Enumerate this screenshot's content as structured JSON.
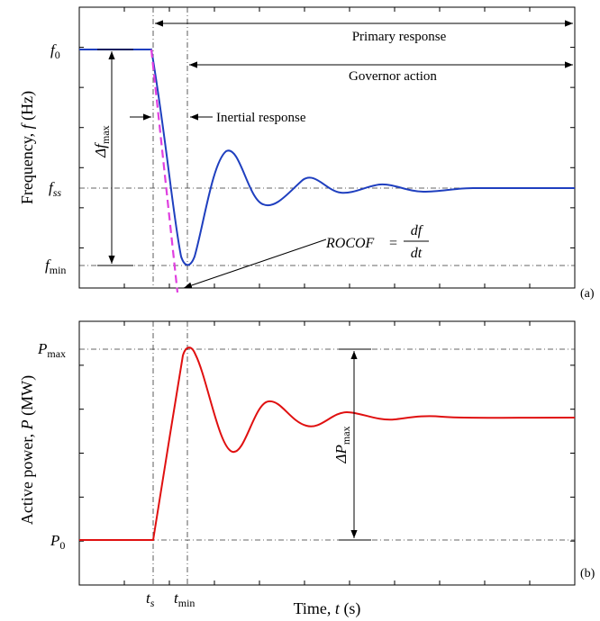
{
  "chart_data": [
    {
      "panel_label": "(a)",
      "type": "line",
      "ylabel_parts": {
        "text": "Frequency, ",
        "var": "f",
        "unit": " (Hz)"
      },
      "y_levels": {
        "f0": {
          "base": "f",
          "sub": "0"
        },
        "fss": {
          "base": "f",
          "sub": "ss"
        },
        "fmin": {
          "base": "f",
          "sub": "min"
        }
      },
      "annotations": {
        "primary_response": "Primary response",
        "governor_action": "Governor action",
        "inertial_response": "Inertial response",
        "delta_fmax": {
          "base": "Δf",
          "sub": "max"
        },
        "rocof": {
          "lhs": "ROCOF",
          "eq": "=",
          "num": "df",
          "den": "dt"
        }
      },
      "series": [
        {
          "color": "#1f3fbf"
        },
        {
          "color": "#e040e0",
          "style": "dashed"
        }
      ]
    },
    {
      "panel_label": "(b)",
      "type": "line",
      "ylabel_parts": {
        "text": "Active power, ",
        "var": "P",
        "unit": "  (MW)"
      },
      "y_levels": {
        "pmax": {
          "base": "P",
          "sub": "max"
        },
        "p0": {
          "base": "P",
          "sub": "0"
        }
      },
      "annotations": {
        "delta_pmax": {
          "base": "ΔP",
          "sub": "max"
        }
      },
      "series": [
        {
          "color": "#e01010"
        }
      ]
    }
  ],
  "x_axis": {
    "xlabel_parts": {
      "text": "Time, ",
      "var": "t",
      "unit": " (s)"
    },
    "ts": {
      "base": "t",
      "sub": "s"
    },
    "tmin": {
      "base": "t",
      "sub": "min"
    }
  }
}
